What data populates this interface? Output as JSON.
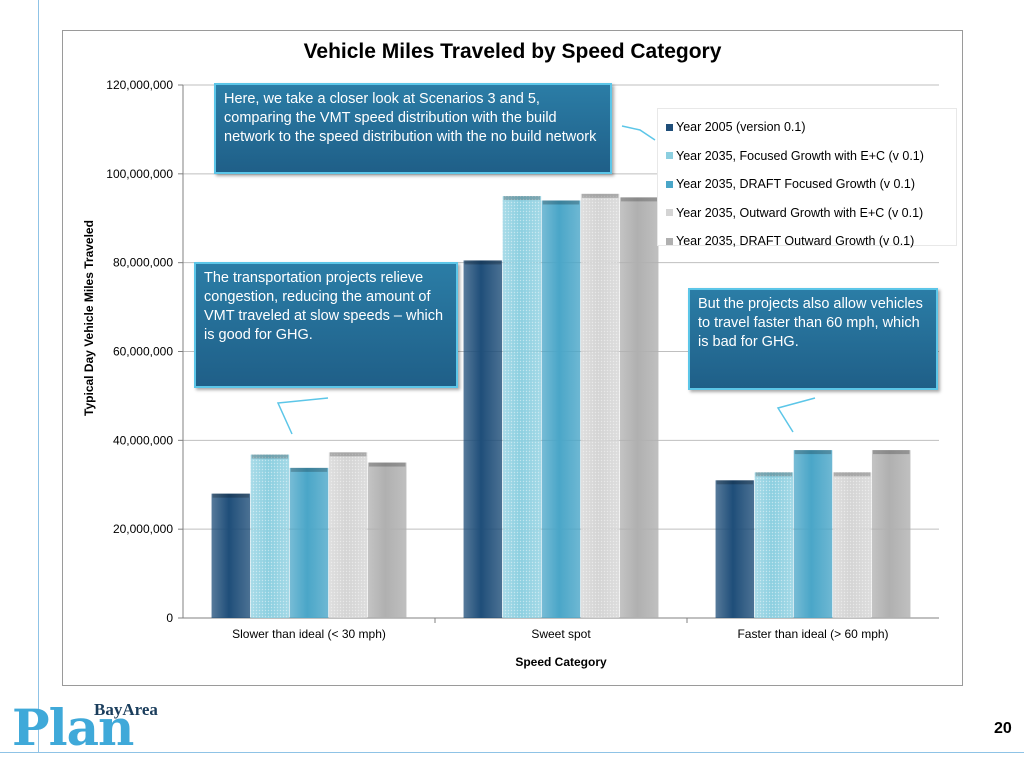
{
  "slide": {
    "page_number": "20"
  },
  "logo": {
    "small_text": "BayArea",
    "big_text": "Plan"
  },
  "callouts": [
    "Here, we take a closer look at Scenarios 3 and 5, comparing the VMT speed distribution with the build network to the speed distribution with the no build network",
    "The transportation projects relieve congestion, reducing the amount of VMT traveled at slow speeds – which is good for GHG.",
    "But the projects also allow vehicles to travel faster than 60 mph, which is bad for GHG."
  ],
  "chart_data": {
    "type": "bar",
    "title": "Vehicle Miles Traveled by Speed Category",
    "xlabel": "Speed Category",
    "ylabel": "Typical Day Vehicle Miles Traveled",
    "ylim": [
      0,
      120000000
    ],
    "yticks": [
      "0",
      "20,000,000",
      "40,000,000",
      "60,000,000",
      "80,000,000",
      "100,000,000",
      "120,000,000"
    ],
    "categories": [
      "Slower than ideal (< 30 mph)",
      "Sweet spot",
      "Faster than ideal (> 60 mph)"
    ],
    "series": [
      {
        "name": "Year 2005 (version 0.1)",
        "values": [
          28000000,
          80500000,
          31000000
        ],
        "color": "#1f4e79"
      },
      {
        "name": "Year 2035, Focused Growth with E+C (v 0.1)",
        "values": [
          36800000,
          95000000,
          32800000
        ],
        "color": "#8ccfe0"
      },
      {
        "name": "Year 2035, DRAFT Focused Growth (v 0.1)",
        "values": [
          33800000,
          94000000,
          37800000
        ],
        "color": "#4aa6c8"
      },
      {
        "name": "Year 2035, Outward Growth with E+C (v 0.1)",
        "values": [
          37300000,
          95500000,
          32800000
        ],
        "color": "#d4d4d4"
      },
      {
        "name": "Year 2035, DRAFT Outward Growth (v 0.1)",
        "values": [
          35000000,
          94700000,
          37800000
        ],
        "color": "#b0b0b0"
      }
    ],
    "grid": true,
    "legend_position": "top-right"
  }
}
